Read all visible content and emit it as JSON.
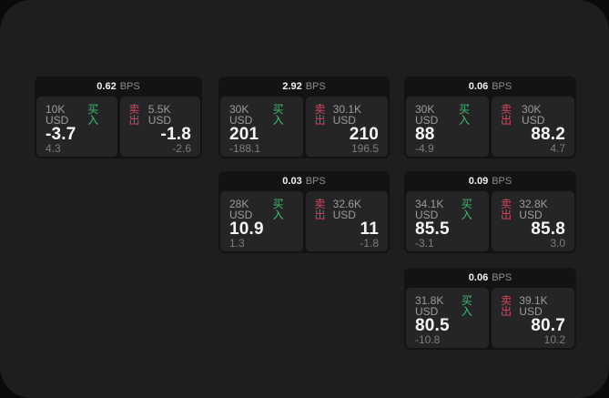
{
  "labels": {
    "bps": "BPS",
    "buy": "买入",
    "sell": "卖出"
  },
  "colors": {
    "buy_green": "#3fbf6f",
    "sell_red": "#d9455f",
    "window_bg": "#1e1e1e",
    "card_bg": "#131313",
    "panel_bg": "#252527"
  },
  "cards": [
    {
      "row": 1,
      "col": 1,
      "bps": "0.62",
      "buy": {
        "amount": "10K USD",
        "value": "-3.7",
        "delta": "4.3"
      },
      "sell": {
        "amount": "5.5K USD",
        "value": "-1.8",
        "delta": "-2.6"
      }
    },
    {
      "row": 1,
      "col": 2,
      "bps": "2.92",
      "buy": {
        "amount": "30K USD",
        "value": "201",
        "delta": "-188.1"
      },
      "sell": {
        "amount": "30.1K USD",
        "value": "210",
        "delta": "196.5"
      }
    },
    {
      "row": 1,
      "col": 3,
      "bps": "0.06",
      "buy": {
        "amount": "30K USD",
        "value": "88",
        "delta": "-4.9"
      },
      "sell": {
        "amount": "30K USD",
        "value": "88.2",
        "delta": "4.7"
      }
    },
    {
      "row": 2,
      "col": 2,
      "bps": "0.03",
      "buy": {
        "amount": "28K USD",
        "value": "10.9",
        "delta": "1.3"
      },
      "sell": {
        "amount": "32.6K USD",
        "value": "11",
        "delta": "-1.8"
      }
    },
    {
      "row": 2,
      "col": 3,
      "bps": "0.09",
      "buy": {
        "amount": "34.1K USD",
        "value": "85.5",
        "delta": "-3.1"
      },
      "sell": {
        "amount": "32.8K USD",
        "value": "85.8",
        "delta": "3.0"
      }
    },
    {
      "row": 3,
      "col": 3,
      "bps": "0.06",
      "buy": {
        "amount": "31.8K USD",
        "value": "80.5",
        "delta": "-10.8"
      },
      "sell": {
        "amount": "39.1K USD",
        "value": "80.7",
        "delta": "10.2"
      }
    }
  ]
}
